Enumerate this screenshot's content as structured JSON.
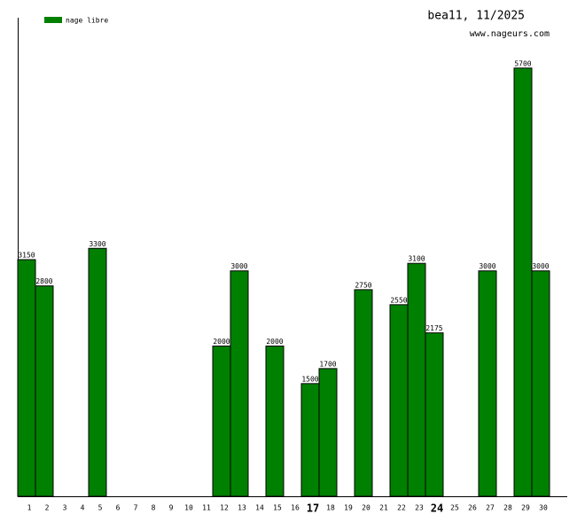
{
  "chart_data": {
    "type": "bar",
    "title": "bea11, 11/2025",
    "subtitle": "www.nageurs.com",
    "categories": [
      "1",
      "2",
      "3",
      "4",
      "5",
      "6",
      "7",
      "8",
      "9",
      "10",
      "11",
      "12",
      "13",
      "14",
      "15",
      "16",
      "17",
      "18",
      "19",
      "20",
      "21",
      "22",
      "23",
      "24",
      "25",
      "26",
      "27",
      "28",
      "29",
      "30"
    ],
    "series": [
      {
        "name": "nage libre",
        "color": "#008000",
        "values": [
          3150,
          2800,
          null,
          null,
          3300,
          null,
          null,
          null,
          null,
          null,
          null,
          2000,
          3000,
          null,
          2000,
          null,
          1500,
          1700,
          null,
          2750,
          null,
          2550,
          3100,
          2175,
          null,
          null,
          3000,
          null,
          5700,
          3000
        ]
      }
    ],
    "ylim": [
      0,
      6370
    ],
    "emphasized_categories": [
      16,
      23
    ]
  }
}
